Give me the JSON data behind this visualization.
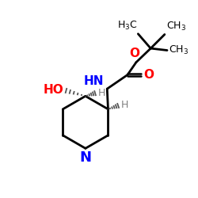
{
  "bg_color": "#ffffff",
  "bond_color": "#000000",
  "N_color": "#0000ff",
  "O_color": "#ff0000",
  "H_color": "#808080",
  "text_color": "#000000",
  "figure_size": [
    2.5,
    2.5
  ],
  "dpi": 100,
  "xlim": [
    0,
    10
  ],
  "ylim": [
    0,
    10
  ]
}
